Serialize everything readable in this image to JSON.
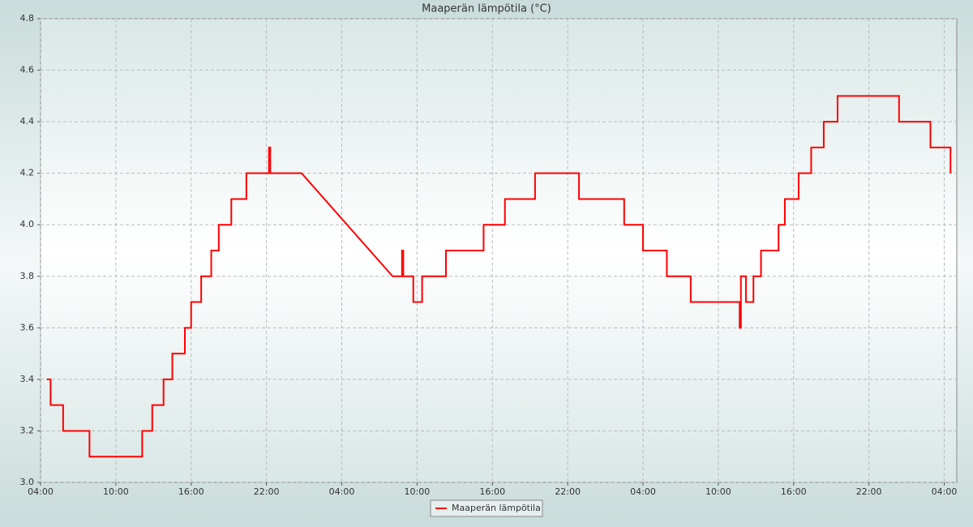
{
  "chart_data": {
    "type": "line",
    "title": "Maaperän lämpötila (°C)",
    "x": [
      0.5,
      0.8,
      0.8,
      1.8,
      1.8,
      3.9,
      3.9,
      8.1,
      8.1,
      8.9,
      8.9,
      9.8,
      9.8,
      10.5,
      10.5,
      11.5,
      11.5,
      12.0,
      12.0,
      12.8,
      12.8,
      13.6,
      13.6,
      14.2,
      14.2,
      15.2,
      15.2,
      16.4,
      16.4,
      18.2,
      18.2,
      18.3,
      18.3,
      20.8,
      28.05,
      28.8,
      28.8,
      28.9,
      28.9,
      29.7,
      29.7,
      30.4,
      30.4,
      32.3,
      32.3,
      35.3,
      35.3,
      37.0,
      37.0,
      39.4,
      39.4,
      42.9,
      42.9,
      46.5,
      46.5,
      48.0,
      48.0,
      49.9,
      49.9,
      51.8,
      51.8,
      55.7,
      55.7,
      55.8,
      55.8,
      56.2,
      56.2,
      56.8,
      56.8,
      57.4,
      57.4,
      58.8,
      58.8,
      59.3,
      59.3,
      60.4,
      60.4,
      61.4,
      61.4,
      62.4,
      62.4,
      63.5,
      63.5,
      68.4,
      68.4,
      70.9,
      70.9,
      72.5,
      72.5
    ],
    "series": [
      {
        "name": "Maaperän lämpötila",
        "color": "#ff0000",
        "values": [
          3.4,
          3.4,
          3.3,
          3.3,
          3.2,
          3.2,
          3.1,
          3.1,
          3.2,
          3.2,
          3.3,
          3.3,
          3.4,
          3.4,
          3.5,
          3.5,
          3.6,
          3.6,
          3.7,
          3.7,
          3.8,
          3.8,
          3.9,
          3.9,
          4.0,
          4.0,
          4.1,
          4.1,
          4.2,
          4.2,
          4.3,
          4.3,
          4.2,
          4.2,
          3.8,
          3.8,
          3.9,
          3.9,
          3.8,
          3.8,
          3.7,
          3.7,
          3.8,
          3.8,
          3.9,
          3.9,
          4.0,
          4.0,
          4.1,
          4.1,
          4.2,
          4.2,
          4.1,
          4.1,
          4.0,
          4.0,
          3.9,
          3.9,
          3.8,
          3.8,
          3.7,
          3.7,
          3.6,
          3.6,
          3.8,
          3.8,
          3.7,
          3.7,
          3.8,
          3.8,
          3.9,
          3.9,
          4.0,
          4.0,
          4.1,
          4.1,
          4.2,
          4.2,
          4.3,
          4.3,
          4.4,
          4.4,
          4.5,
          4.5,
          4.4,
          4.4,
          4.3,
          4.3,
          4.2
        ]
      }
    ],
    "xlim": [
      0,
      73
    ],
    "xticks": [
      {
        "value": 0,
        "label": "04:00"
      },
      {
        "value": 6,
        "label": "10:00"
      },
      {
        "value": 12,
        "label": "16:00"
      },
      {
        "value": 18,
        "label": "22:00"
      },
      {
        "value": 24,
        "label": "04:00"
      },
      {
        "value": 30,
        "label": "10:00"
      },
      {
        "value": 36,
        "label": "16:00"
      },
      {
        "value": 42,
        "label": "22:00"
      },
      {
        "value": 48,
        "label": "04:00"
      },
      {
        "value": 54,
        "label": "10:00"
      },
      {
        "value": 60,
        "label": "16:00"
      },
      {
        "value": 66,
        "label": "22:00"
      },
      {
        "value": 72,
        "label": "04:00"
      }
    ],
    "ylim": [
      3.0,
      4.8
    ],
    "yticks": [
      {
        "value": 3,
        "label": "3.0"
      },
      3.2,
      3.4,
      3.6,
      3.8,
      {
        "value": 4,
        "label": "4.0"
      },
      4.2,
      4.4,
      4.6,
      4.8
    ],
    "grid": true,
    "legend": "bottom"
  }
}
